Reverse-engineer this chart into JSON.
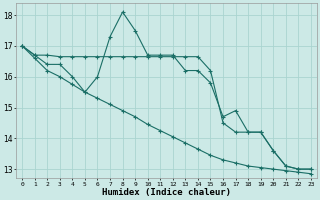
{
  "xlabel": "Humidex (Indice chaleur)",
  "ylabel": "",
  "background_color": "#cce9e6",
  "grid_color": "#aad4d0",
  "line_color": "#1a6e66",
  "xlim": [
    -0.5,
    23.5
  ],
  "ylim": [
    12.7,
    18.4
  ],
  "xticks": [
    0,
    1,
    2,
    3,
    4,
    5,
    6,
    7,
    8,
    9,
    10,
    11,
    12,
    13,
    14,
    15,
    16,
    17,
    18,
    19,
    20,
    21,
    22,
    23
  ],
  "yticks": [
    13,
    14,
    15,
    16,
    17,
    18
  ],
  "line1_x": [
    0,
    1,
    2,
    3,
    4,
    5,
    6,
    7,
    8,
    9,
    10,
    11,
    12,
    13,
    14,
    15,
    16,
    17,
    18,
    19,
    20,
    21,
    22,
    23
  ],
  "line1_y": [
    17.0,
    16.7,
    16.4,
    16.4,
    16.0,
    15.5,
    16.0,
    17.3,
    18.1,
    17.5,
    16.7,
    16.7,
    16.7,
    16.2,
    16.2,
    15.8,
    14.7,
    14.9,
    14.2,
    14.2,
    13.6,
    13.1,
    13.0,
    13.0
  ],
  "line2_x": [
    0,
    1,
    2,
    3,
    4,
    5,
    6,
    7,
    8,
    9,
    10,
    11,
    12,
    13,
    14,
    15,
    16,
    17,
    18,
    19,
    20,
    21,
    22,
    23
  ],
  "line2_y": [
    17.0,
    16.7,
    16.7,
    16.65,
    16.65,
    16.65,
    16.65,
    16.65,
    16.65,
    16.65,
    16.65,
    16.65,
    16.65,
    16.65,
    16.65,
    16.2,
    14.5,
    14.2,
    14.2,
    14.2,
    13.6,
    13.1,
    13.0,
    13.0
  ],
  "line3_x": [
    0,
    1,
    2,
    3,
    4,
    5,
    6,
    7,
    8,
    9,
    10,
    11,
    12,
    13,
    14,
    15,
    16,
    17,
    18,
    19,
    20,
    21,
    22,
    23
  ],
  "line3_y": [
    17.0,
    16.6,
    16.2,
    16.0,
    15.75,
    15.5,
    15.3,
    15.1,
    14.9,
    14.7,
    14.45,
    14.25,
    14.05,
    13.85,
    13.65,
    13.45,
    13.3,
    13.2,
    13.1,
    13.05,
    13.0,
    12.95,
    12.9,
    12.85
  ]
}
